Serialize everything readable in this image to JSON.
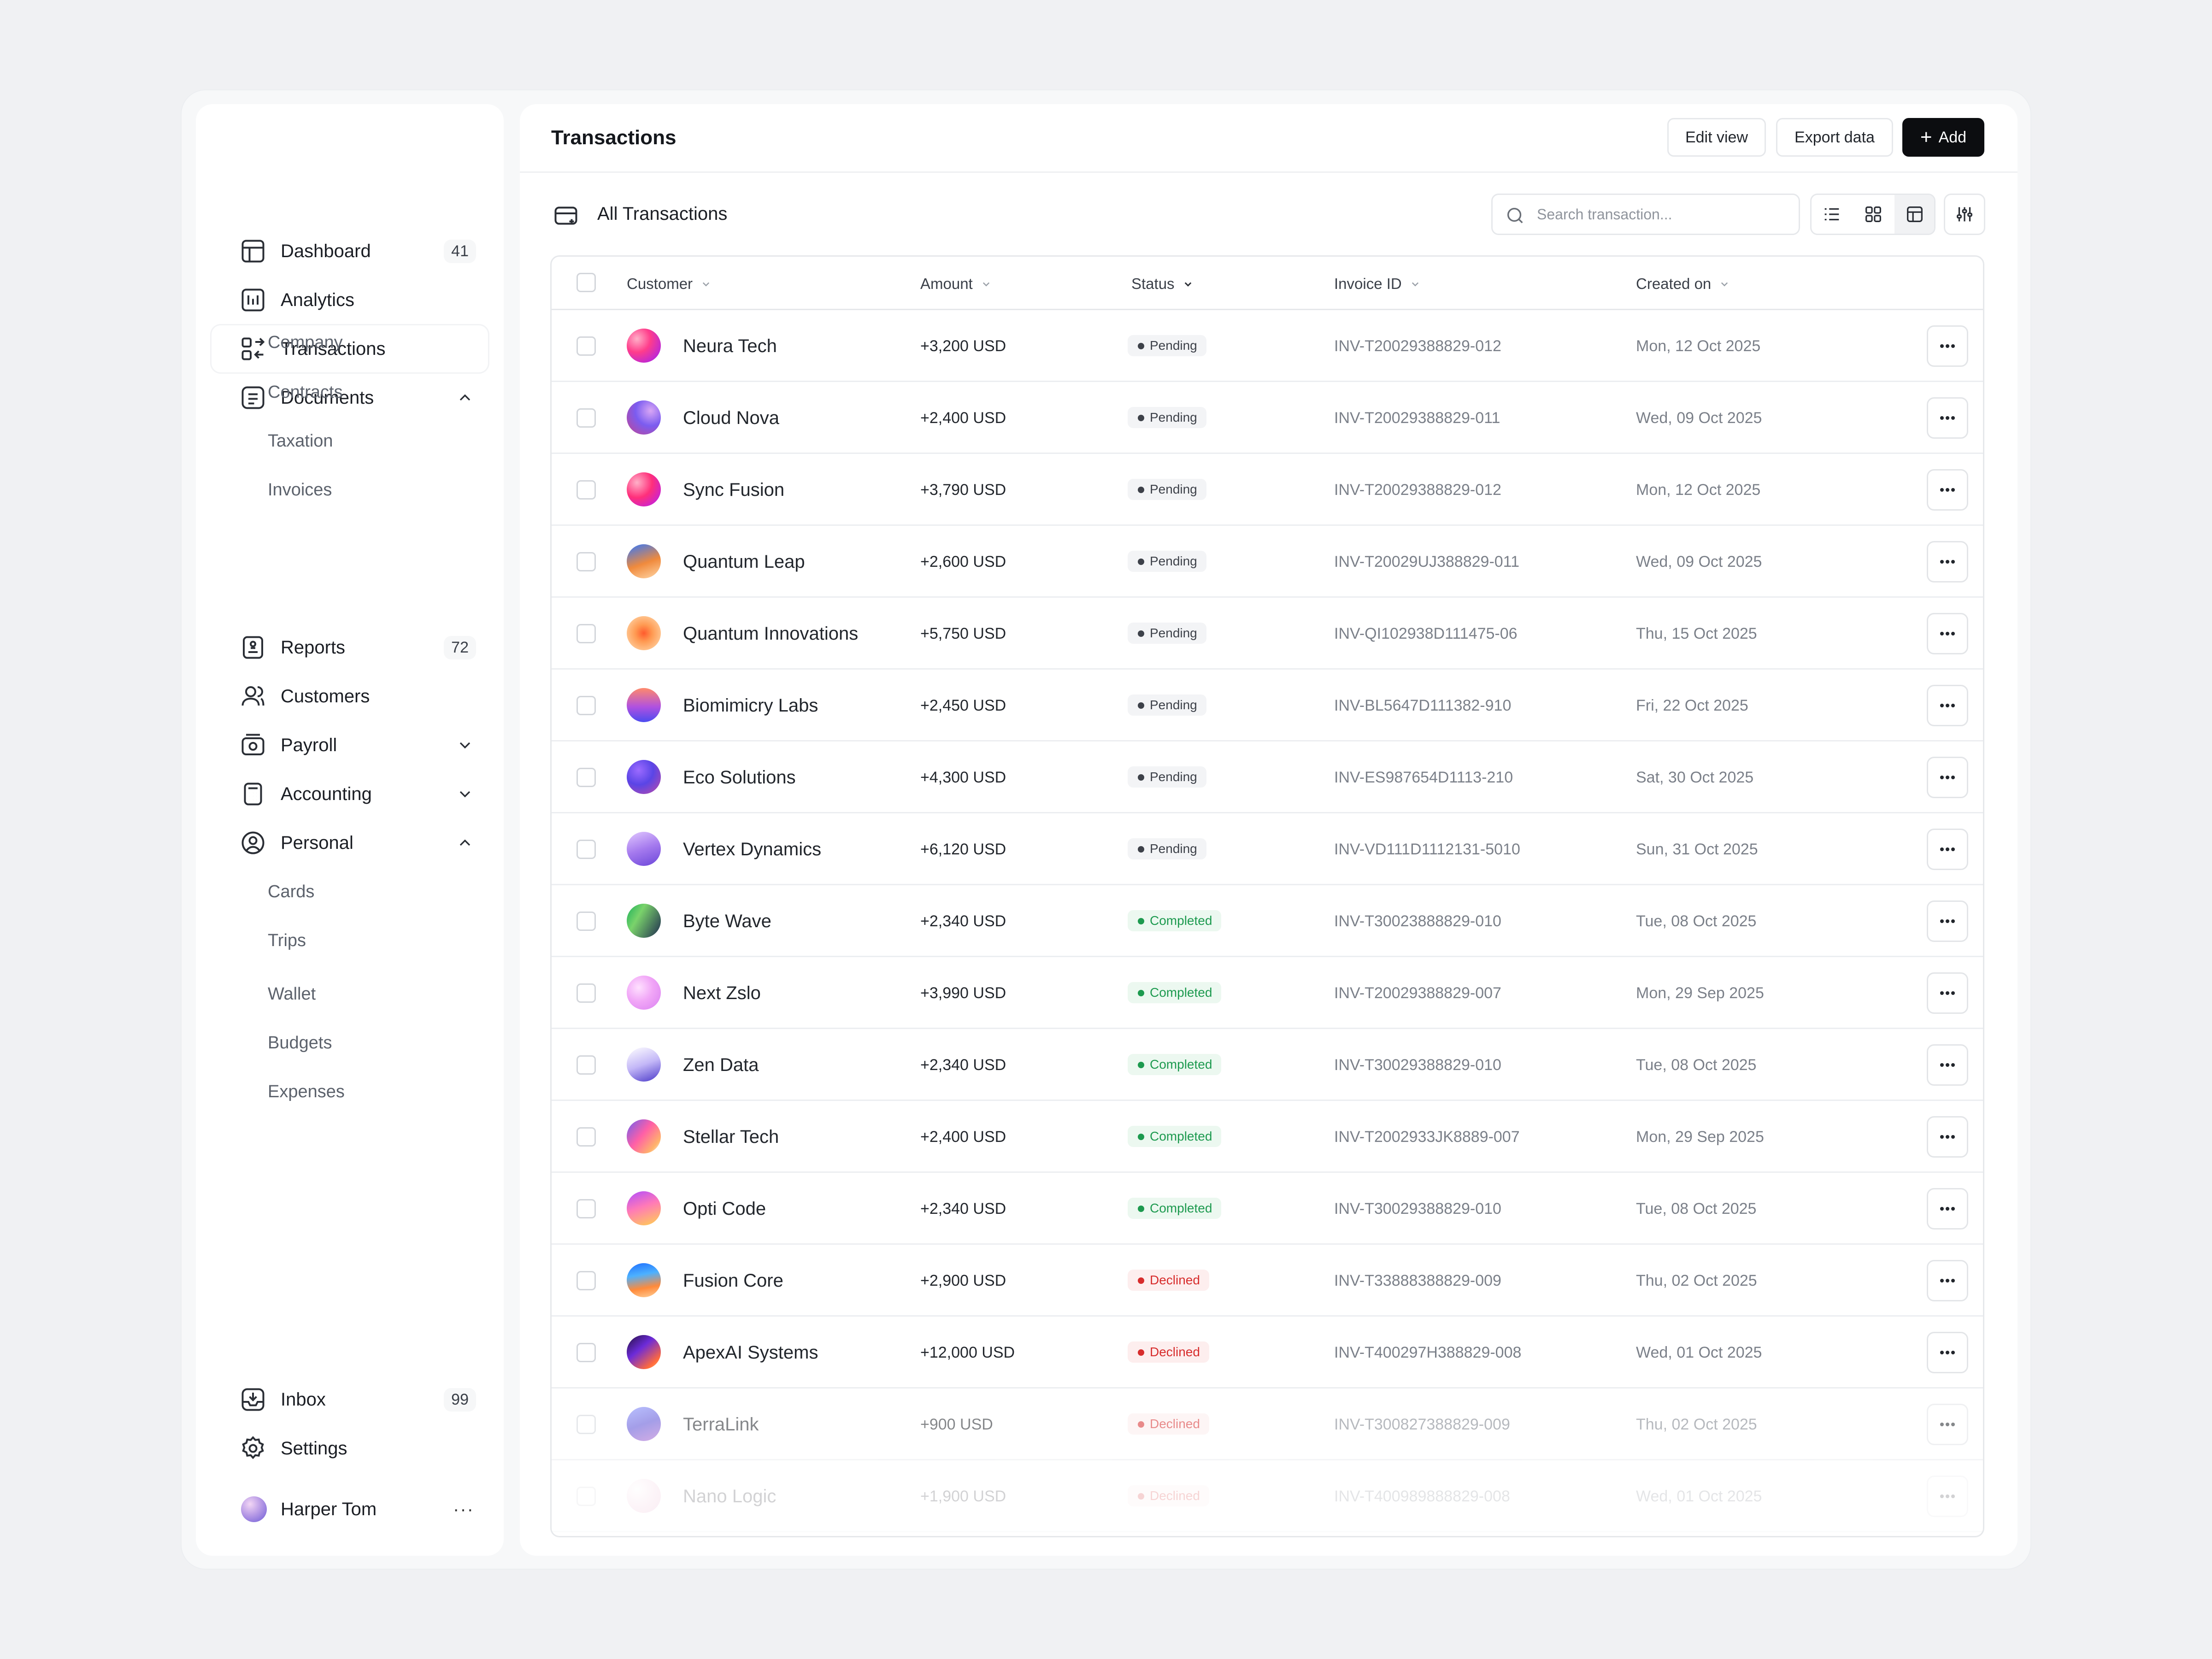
{
  "sidebar": {
    "items": [
      {
        "label": "Dashboard",
        "badge": "41",
        "icon": "dashboard-icon"
      },
      {
        "label": "Analytics",
        "icon": "analytics-icon"
      },
      {
        "label": "Transactions",
        "icon": "transactions-icon"
      },
      {
        "label": "Documents",
        "icon": "documents-icon"
      },
      {
        "label": "Reports",
        "badge": "72",
        "icon": "reports-icon"
      },
      {
        "label": "Customers",
        "icon": "customers-icon"
      },
      {
        "label": "Payroll",
        "icon": "payroll-icon"
      },
      {
        "label": "Accounting",
        "icon": "accounting-icon"
      },
      {
        "label": "Personal",
        "icon": "personal-icon"
      }
    ],
    "documents_sub": [
      "Company",
      "Contracts",
      "Taxation",
      "Invoices"
    ],
    "personal_sub": [
      "Cards",
      "Trips",
      "Wallet",
      "Budgets",
      "Expenses"
    ],
    "bottom": [
      {
        "label": "Inbox",
        "badge": "99",
        "icon": "inbox-icon"
      },
      {
        "label": "Settings",
        "icon": "settings-icon"
      }
    ],
    "user": {
      "name": "Harper Tom",
      "more": "···"
    }
  },
  "header": {
    "title": "Transactions",
    "edit_view": "Edit view",
    "export_data": "Export data",
    "add": "Add",
    "add_icon": "+"
  },
  "section": {
    "title": "All Transactions",
    "search_placeholder": "Search transaction...",
    "active_view": "table"
  },
  "table": {
    "columns": [
      "Customer",
      "Amount",
      "Status",
      "Invoice ID",
      "Created on"
    ],
    "rows": [
      {
        "customer": "Neura Tech",
        "amount": "+3,200 USD",
        "status": "Pending",
        "invoice": "INV-T20029388829-012",
        "date": "Mon, 12 Oct 2025"
      },
      {
        "customer": "Cloud Nova",
        "amount": "+2,400 USD",
        "status": "Pending",
        "invoice": "INV-T20029388829-011",
        "date": "Wed, 09 Oct 2025"
      },
      {
        "customer": "Sync Fusion",
        "amount": "+3,790 USD",
        "status": "Pending",
        "invoice": "INV-T20029388829-012",
        "date": "Mon, 12 Oct 2025"
      },
      {
        "customer": "Quantum Leap",
        "amount": "+2,600 USD",
        "status": "Pending",
        "invoice": "INV-T20029UJ388829-011",
        "date": "Wed, 09 Oct 2025"
      },
      {
        "customer": "Quantum Innovations",
        "amount": "+5,750 USD",
        "status": "Pending",
        "invoice": "INV-QI102938D111475-06",
        "date": "Thu, 15 Oct 2025"
      },
      {
        "customer": "Biomimicry Labs",
        "amount": "+2,450 USD",
        "status": "Pending",
        "invoice": "INV-BL5647D111382-910",
        "date": "Fri, 22 Oct 2025"
      },
      {
        "customer": "Eco Solutions",
        "amount": "+4,300 USD",
        "status": "Pending",
        "invoice": "INV-ES987654D1113-210",
        "date": "Sat, 30 Oct 2025"
      },
      {
        "customer": "Vertex Dynamics",
        "amount": "+6,120 USD",
        "status": "Pending",
        "invoice": "INV-VD111D1112131-5010",
        "date": "Sun, 31 Oct 2025"
      },
      {
        "customer": "Byte Wave",
        "amount": "+2,340 USD",
        "status": "Completed",
        "invoice": "INV-T30023888829-010",
        "date": "Tue, 08 Oct 2025"
      },
      {
        "customer": "Next Zslo",
        "amount": "+3,990 USD",
        "status": "Completed",
        "invoice": "INV-T20029388829-007",
        "date": "Mon, 29 Sep 2025"
      },
      {
        "customer": "Zen Data",
        "amount": "+2,340 USD",
        "status": "Completed",
        "invoice": "INV-T30029388829-010",
        "date": "Tue, 08 Oct 2025"
      },
      {
        "customer": "Stellar Tech",
        "amount": "+2,400 USD",
        "status": "Completed",
        "invoice": "INV-T2002933JK8889-007",
        "date": "Mon, 29 Sep 2025"
      },
      {
        "customer": "Opti Code",
        "amount": "+2,340 USD",
        "status": "Completed",
        "invoice": "INV-T30029388829-010",
        "date": "Tue, 08 Oct 2025"
      },
      {
        "customer": "Fusion Core",
        "amount": "+2,900 USD",
        "status": "Declined",
        "invoice": "INV-T33888388829-009",
        "date": "Thu, 02 Oct 2025"
      },
      {
        "customer": "ApexAI Systems",
        "amount": "+12,000 USD",
        "status": "Declined",
        "invoice": "INV-T400297H388829-008",
        "date": "Wed, 01 Oct 2025"
      },
      {
        "customer": "TerraLink",
        "amount": "+900 USD",
        "status": "Declined",
        "invoice": "INV-T300827388829-009",
        "date": "Thu, 02 Oct 2025"
      },
      {
        "customer": "Nano Logic",
        "amount": "+1,900 USD",
        "status": "Declined",
        "invoice": "INV-T400989888829-008",
        "date": "Wed, 01 Oct 2025"
      }
    ]
  },
  "colors": {
    "background": "#f0f1f3",
    "primary_button": "#0c0d10",
    "pending": "#3d4149",
    "completed": "#1d9a4f",
    "declined": "#d72c2c"
  }
}
